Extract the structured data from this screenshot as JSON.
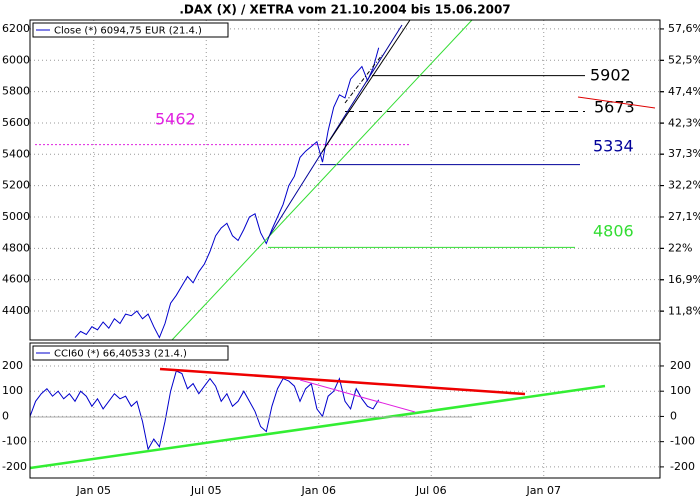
{
  "chart_data": [
    {
      "type": "line",
      "title": ".DAX (X) / XETRA vom 21.10.2004 bis 15.06.2007",
      "x": [
        -1,
        -0.7,
        -0.4,
        -0.1,
        0.2,
        0.5,
        0.8,
        1.1,
        1.4,
        1.7,
        2,
        2.3,
        2.6,
        2.9,
        3.2,
        3.5,
        3.8,
        4.1,
        4.4,
        4.7,
        5,
        5.3,
        5.6,
        5.9,
        6.2,
        6.5,
        6.8,
        7.1,
        7.4,
        7.7,
        8,
        8.3,
        8.6,
        8.9,
        9.2,
        9.5,
        9.8,
        10.1,
        10.4,
        10.7,
        11,
        11.3,
        11.6,
        11.9,
        12.2,
        12.5,
        12.8,
        13.1,
        13.4,
        13.7,
        14,
        14.3,
        14.6,
        14.9,
        15.2
      ],
      "series": [
        {
          "name": "Close (*) 6094,75 EUR (21.4.)",
          "color": "#0000cc",
          "values": [
            4230,
            4270,
            4250,
            4300,
            4280,
            4330,
            4290,
            4350,
            4320,
            4380,
            4370,
            4400,
            4350,
            4380,
            4300,
            4230,
            4320,
            4450,
            4500,
            4560,
            4620,
            4580,
            4650,
            4700,
            4780,
            4880,
            4930,
            4960,
            4880,
            4850,
            4920,
            5000,
            5020,
            4900,
            4830,
            4920,
            5000,
            5080,
            5200,
            5260,
            5380,
            5420,
            5450,
            5480,
            5350,
            5550,
            5700,
            5780,
            5760,
            5880,
            5920,
            5960,
            5870,
            5950,
            6080
          ]
        }
      ],
      "xlim": [
        -3.4,
        30.2
      ],
      "ylim": [
        4215,
        6257
      ],
      "yticks": [
        4400,
        4600,
        4800,
        5000,
        5200,
        5400,
        5600,
        5800,
        6000,
        6200
      ],
      "y2lim": [
        7.14,
        59.05
      ],
      "y2ticks": [
        {
          "value": 11.8,
          "label": "11,8%"
        },
        {
          "value": 16.9,
          "label": "16,9%"
        },
        {
          "value": 22,
          "label": "22%"
        },
        {
          "value": 27.1,
          "label": "27,1%"
        },
        {
          "value": 32.2,
          "label": "32,2%"
        },
        {
          "value": 37.3,
          "label": "37,3%"
        },
        {
          "value": 42.3,
          "label": "42,3%"
        },
        {
          "value": 47.4,
          "label": "47,4%"
        },
        {
          "value": 52.5,
          "label": "52,5%"
        },
        {
          "value": 57.6,
          "label": "57,6%"
        }
      ],
      "grid": true,
      "legend": "upper left",
      "annotations": [
        {
          "value": 5902,
          "color": "#000000"
        },
        {
          "value": 5673,
          "color": "#000000",
          "dashed": true
        },
        {
          "value": 5462,
          "color": "#e020e0",
          "dashed": true
        },
        {
          "value": 5334,
          "color": "#000099"
        },
        {
          "value": 4806,
          "color": "#33dd33"
        }
      ]
    },
    {
      "type": "line",
      "x": [
        -3.4,
        -3.1,
        -2.8,
        -2.5,
        -2.2,
        -1.9,
        -1.6,
        -1.3,
        -1,
        -0.7,
        -0.4,
        -0.1,
        0.2,
        0.5,
        0.8,
        1.1,
        1.4,
        1.7,
        2,
        2.3,
        2.6,
        2.9,
        3.2,
        3.5,
        3.8,
        4.1,
        4.4,
        4.7,
        5,
        5.3,
        5.6,
        5.9,
        6.2,
        6.5,
        6.8,
        7.1,
        7.4,
        7.7,
        8,
        8.3,
        8.6,
        8.9,
        9.2,
        9.5,
        9.8,
        10.1,
        10.4,
        10.7,
        11,
        11.3,
        11.6,
        11.9,
        12.2,
        12.5,
        12.8,
        13.1,
        13.4,
        13.7,
        14,
        14.3,
        14.6,
        14.9,
        15.2
      ],
      "series": [
        {
          "name": "CCI60 (*) 66,40533 (21.4.)",
          "color": "#0000cc",
          "values": [
            0,
            60,
            90,
            110,
            80,
            100,
            70,
            90,
            60,
            100,
            80,
            40,
            70,
            30,
            60,
            90,
            70,
            80,
            40,
            60,
            -20,
            -130,
            -90,
            -120,
            -20,
            100,
            180,
            170,
            110,
            130,
            90,
            120,
            150,
            120,
            60,
            90,
            40,
            60,
            100,
            60,
            20,
            -40,
            -60,
            40,
            110,
            150,
            140,
            120,
            60,
            110,
            130,
            30,
            0,
            80,
            100,
            150,
            60,
            30,
            110,
            70,
            40,
            30,
            66.4
          ]
        }
      ],
      "xlim": [
        -3.4,
        30.2
      ],
      "ylim": [
        -244,
        291
      ],
      "yticks": [
        -200,
        -100,
        0,
        100,
        200
      ],
      "xticks": [
        {
          "value": 0,
          "label": "Jan 05"
        },
        {
          "value": 6,
          "label": "Jul 05"
        },
        {
          "value": 12,
          "label": "Jan 06"
        },
        {
          "value": 18,
          "label": "Jul 06"
        },
        {
          "value": 24,
          "label": "Jan 07"
        }
      ],
      "grid": true,
      "legend": "upper left"
    }
  ]
}
